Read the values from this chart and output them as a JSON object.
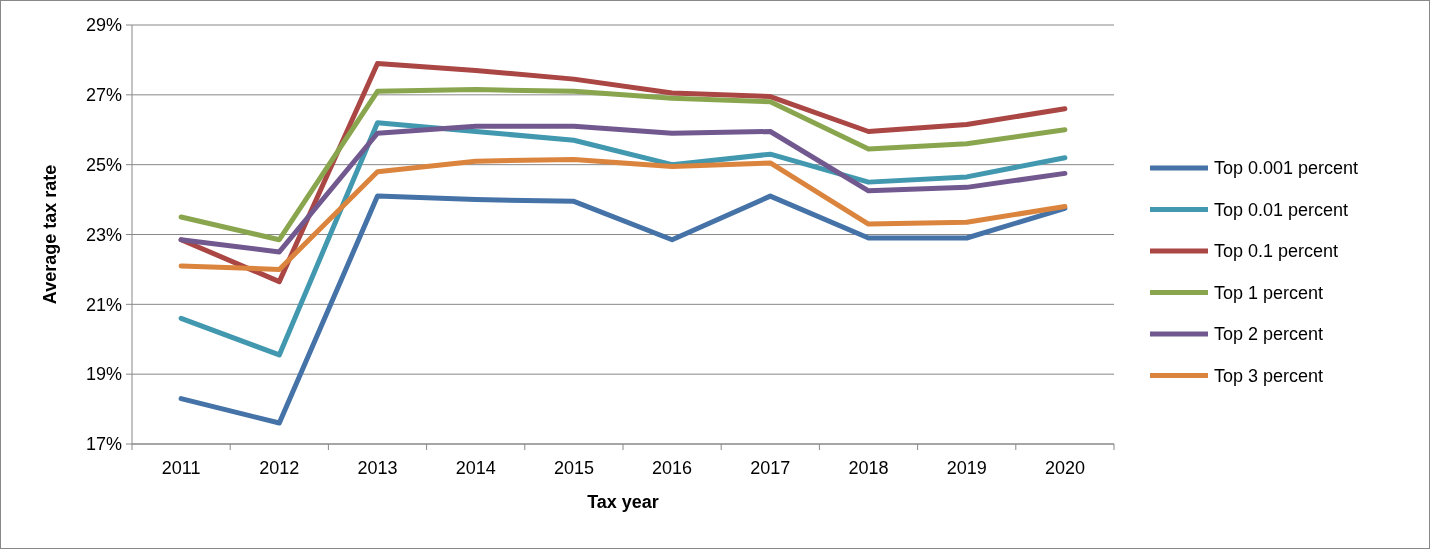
{
  "chart_data": {
    "type": "line",
    "xlabel": "Tax year",
    "ylabel": "Average tax rate",
    "categories": [
      "2011",
      "2012",
      "2013",
      "2014",
      "2015",
      "2016",
      "2017",
      "2018",
      "2019",
      "2020"
    ],
    "ylim": [
      17,
      29
    ],
    "yticks": [
      {
        "value": 17,
        "label": "17%"
      },
      {
        "value": 19,
        "label": "19%"
      },
      {
        "value": 21,
        "label": "21%"
      },
      {
        "value": 23,
        "label": "23%"
      },
      {
        "value": 25,
        "label": "25%"
      },
      {
        "value": 27,
        "label": "27%"
      },
      {
        "value": 29,
        "label": "29%"
      }
    ],
    "grid": "y",
    "legend": "right",
    "marker": "none",
    "line_style": "solid",
    "series": [
      {
        "name": "Top 0.001 percent",
        "color": "#4572a7",
        "values": [
          18.3,
          17.6,
          24.1,
          24.0,
          23.95,
          22.85,
          24.1,
          22.9,
          22.9,
          23.75
        ]
      },
      {
        "name": "Top 0.01 percent",
        "color": "#4198af",
        "values": [
          20.6,
          19.55,
          26.2,
          25.95,
          25.7,
          25.0,
          25.3,
          24.5,
          24.65,
          25.2
        ]
      },
      {
        "name": "Top 0.1 percent",
        "color": "#aa4643",
        "values": [
          22.85,
          21.65,
          27.9,
          27.7,
          27.45,
          27.05,
          26.95,
          25.95,
          26.15,
          26.6
        ]
      },
      {
        "name": "Top 1 percent",
        "color": "#89a54e",
        "values": [
          23.5,
          22.85,
          27.1,
          27.15,
          27.1,
          26.9,
          26.8,
          25.45,
          25.6,
          26.0
        ]
      },
      {
        "name": "Top 2 percent",
        "color": "#71588f",
        "values": [
          22.85,
          22.5,
          25.9,
          26.1,
          26.1,
          25.9,
          25.95,
          24.25,
          24.35,
          24.75
        ]
      },
      {
        "name": "Top 3 percent",
        "color": "#db843d",
        "values": [
          22.1,
          22.0,
          24.8,
          25.1,
          25.15,
          24.95,
          25.05,
          23.3,
          23.35,
          23.8
        ]
      }
    ]
  }
}
